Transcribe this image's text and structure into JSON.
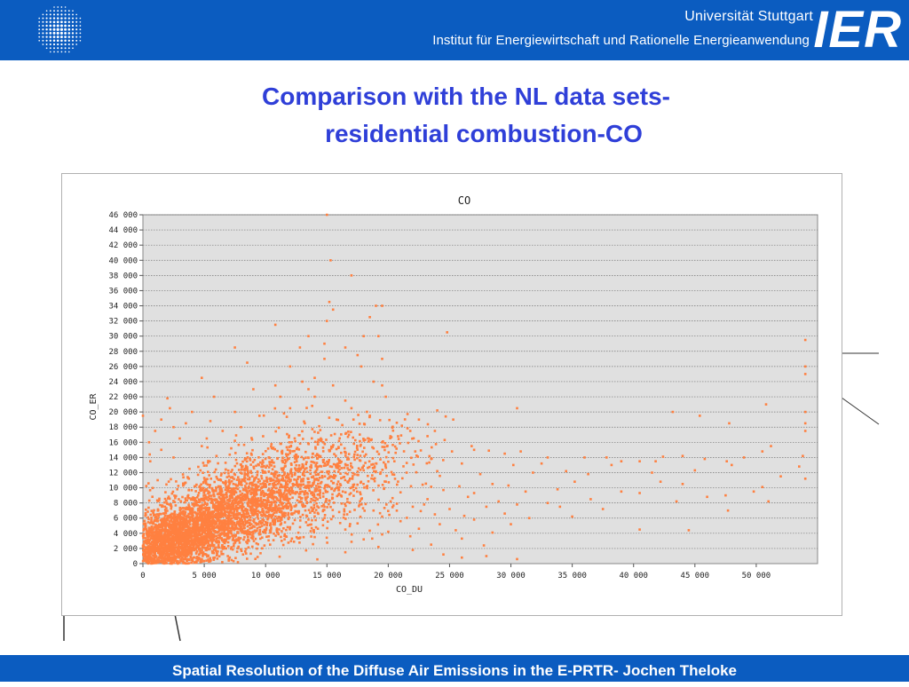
{
  "header": {
    "university": "Universität Stuttgart",
    "institute": "Institut für Energiewirtschaft und Rationelle Energieanwendung",
    "logo_text": "IER",
    "bg_color": "#0b5cc0"
  },
  "slide": {
    "title_line1": "Comparison with the NL data sets-",
    "title_line2": "residential combustion-CO"
  },
  "footer": {
    "text": "Spatial Resolution of the Diffuse Air Emissions in the E-PRTR- Jochen Theloke"
  },
  "chart_data": {
    "type": "scatter",
    "title": "CO",
    "xlabel": "CO_DU",
    "ylabel": "CO_ER",
    "xlim": [
      0,
      55000
    ],
    "ylim": [
      0,
      46000
    ],
    "x_ticks": [
      0,
      5000,
      10000,
      15000,
      20000,
      25000,
      30000,
      35000,
      40000,
      45000,
      50000
    ],
    "x_tick_labels": [
      "0",
      "5 000",
      "10 000",
      "15 000",
      "20 000",
      "25 000",
      "30 000",
      "35 000",
      "40 000",
      "45 000",
      "50 000"
    ],
    "y_ticks": [
      0,
      2000,
      4000,
      6000,
      8000,
      10000,
      12000,
      14000,
      16000,
      18000,
      20000,
      22000,
      24000,
      26000,
      28000,
      30000,
      32000,
      34000,
      36000,
      38000,
      40000,
      42000,
      44000,
      46000
    ],
    "y_tick_labels": [
      "0",
      "2 000",
      "4 000",
      "6 000",
      "8 000",
      "10 000",
      "12 000",
      "14 000",
      "16 000",
      "18 000",
      "20 000",
      "22 000",
      "24 000",
      "26 000",
      "28 000",
      "30 000",
      "32 000",
      "34 000",
      "36 000",
      "38 000",
      "40 000",
      "42 000",
      "44 000",
      "46 000"
    ],
    "grid": "horizontal",
    "point_color": "#ff8040",
    "plot_bg": "#e0e0e0",
    "series": [
      {
        "points": [
          [
            15000,
            46000
          ],
          [
            15300,
            40000
          ],
          [
            17000,
            38000
          ],
          [
            15200,
            34500
          ],
          [
            15500,
            33500
          ],
          [
            19000,
            34000
          ],
          [
            19500,
            34000
          ],
          [
            15000,
            32000
          ],
          [
            18500,
            32500
          ],
          [
            10800,
            31500
          ],
          [
            13500,
            30000
          ],
          [
            18000,
            30000
          ],
          [
            24800,
            30500
          ],
          [
            14800,
            29000
          ],
          [
            19200,
            30000
          ],
          [
            54000,
            29500
          ],
          [
            12800,
            28500
          ],
          [
            16500,
            28500
          ],
          [
            7500,
            28500
          ],
          [
            8500,
            26500
          ],
          [
            12000,
            26000
          ],
          [
            14800,
            27000
          ],
          [
            17500,
            27500
          ],
          [
            19500,
            27000
          ],
          [
            54000,
            26000
          ],
          [
            4800,
            24500
          ],
          [
            13000,
            24000
          ],
          [
            14000,
            24500
          ],
          [
            17800,
            26000
          ],
          [
            54000,
            25000
          ],
          [
            9000,
            23000
          ],
          [
            10800,
            23500
          ],
          [
            13500,
            23000
          ],
          [
            15500,
            23500
          ],
          [
            18800,
            24000
          ],
          [
            19500,
            23500
          ],
          [
            2000,
            21800
          ],
          [
            5800,
            22000
          ],
          [
            11200,
            22000
          ],
          [
            14000,
            22000
          ],
          [
            16500,
            21500
          ],
          [
            19800,
            22000
          ],
          [
            2200,
            20500
          ],
          [
            4000,
            20000
          ],
          [
            7500,
            20000
          ],
          [
            12000,
            20500
          ],
          [
            13800,
            20800
          ],
          [
            17000,
            20500
          ],
          [
            24000,
            20200
          ],
          [
            30500,
            20500
          ],
          [
            43200,
            20000
          ],
          [
            50800,
            21000
          ],
          [
            54000,
            20000
          ],
          [
            0,
            19500
          ],
          [
            1500,
            19000
          ],
          [
            3500,
            18500
          ],
          [
            5500,
            18800
          ],
          [
            9500,
            19500
          ],
          [
            11500,
            19800
          ],
          [
            15800,
            19000
          ],
          [
            18500,
            19500
          ],
          [
            22500,
            19000
          ],
          [
            25300,
            19000
          ],
          [
            45400,
            19500
          ],
          [
            54000,
            18500
          ],
          [
            1000,
            17500
          ],
          [
            2500,
            18000
          ],
          [
            6500,
            17500
          ],
          [
            8000,
            18000
          ],
          [
            13200,
            18500
          ],
          [
            16800,
            17000
          ],
          [
            21800,
            17500
          ],
          [
            23800,
            17500
          ],
          [
            47800,
            18500
          ],
          [
            54000,
            17500
          ],
          [
            500,
            16000
          ],
          [
            3000,
            16500
          ],
          [
            5200,
            16500
          ],
          [
            9800,
            16800
          ],
          [
            14500,
            16500
          ],
          [
            19500,
            16000
          ],
          [
            20800,
            16800
          ],
          [
            24600,
            16300
          ],
          [
            26800,
            15500
          ],
          [
            51200,
            15500
          ],
          [
            1500,
            15000
          ],
          [
            4800,
            15500
          ],
          [
            7200,
            15200
          ],
          [
            11800,
            15000
          ],
          [
            17200,
            15800
          ],
          [
            18800,
            15200
          ],
          [
            22200,
            14800
          ],
          [
            25200,
            14800
          ],
          [
            27000,
            15000
          ],
          [
            28200,
            14900
          ],
          [
            29500,
            14500
          ],
          [
            30800,
            14800
          ],
          [
            33000,
            14000
          ],
          [
            36000,
            14000
          ],
          [
            37800,
            14000
          ],
          [
            39000,
            13500
          ],
          [
            40500,
            13500
          ],
          [
            42400,
            14100
          ],
          [
            44000,
            14200
          ],
          [
            45800,
            13800
          ],
          [
            47600,
            13500
          ],
          [
            49000,
            14000
          ],
          [
            50500,
            14800
          ],
          [
            53800,
            14200
          ],
          [
            600,
            13500
          ],
          [
            2500,
            14000
          ],
          [
            6000,
            14200
          ],
          [
            12500,
            13800
          ],
          [
            16000,
            13500
          ],
          [
            20500,
            13500
          ],
          [
            23500,
            13800
          ],
          [
            26000,
            13200
          ],
          [
            30200,
            13000
          ],
          [
            32500,
            13200
          ],
          [
            38200,
            13000
          ],
          [
            41800,
            13500
          ],
          [
            48000,
            13000
          ],
          [
            53500,
            12800
          ],
          [
            3800,
            12500
          ],
          [
            8500,
            12700
          ],
          [
            10000,
            12000
          ],
          [
            14200,
            12400
          ],
          [
            18000,
            12300
          ],
          [
            21500,
            12000
          ],
          [
            24000,
            12200
          ],
          [
            27500,
            11800
          ],
          [
            31800,
            12000
          ],
          [
            34500,
            12200
          ],
          [
            36300,
            11800
          ],
          [
            41500,
            12000
          ],
          [
            45000,
            12300
          ],
          [
            52000,
            11500
          ],
          [
            54000,
            11200
          ],
          [
            1200,
            11000
          ],
          [
            5000,
            11300
          ],
          [
            7000,
            10800
          ],
          [
            11000,
            10500
          ],
          [
            15500,
            10600
          ],
          [
            19800,
            10800
          ],
          [
            22800,
            10400
          ],
          [
            25800,
            10200
          ],
          [
            28500,
            10500
          ],
          [
            29800,
            10300
          ],
          [
            35200,
            10800
          ],
          [
            42200,
            10800
          ],
          [
            44000,
            10500
          ],
          [
            50500,
            10100
          ],
          [
            2800,
            9800
          ],
          [
            6300,
            9600
          ],
          [
            9200,
            9900
          ],
          [
            13000,
            9500
          ],
          [
            16300,
            9500
          ],
          [
            21000,
            9400
          ],
          [
            24500,
            9700
          ],
          [
            27000,
            9300
          ],
          [
            31200,
            9500
          ],
          [
            33800,
            9800
          ],
          [
            39000,
            9500
          ],
          [
            40500,
            9300
          ],
          [
            47500,
            9000
          ],
          [
            49800,
            9500
          ],
          [
            4000,
            8500
          ],
          [
            8800,
            8300
          ],
          [
            12200,
            8700
          ],
          [
            17800,
            8500
          ],
          [
            20200,
            8200
          ],
          [
            23200,
            8500
          ],
          [
            26500,
            8800
          ],
          [
            29000,
            8200
          ],
          [
            33000,
            8000
          ],
          [
            36500,
            8500
          ],
          [
            43500,
            8200
          ],
          [
            46000,
            8800
          ],
          [
            51000,
            8200
          ],
          [
            1800,
            7500
          ],
          [
            7500,
            7200
          ],
          [
            10500,
            7800
          ],
          [
            14800,
            7500
          ],
          [
            18800,
            7000
          ],
          [
            22000,
            7500
          ],
          [
            25000,
            7200
          ],
          [
            28000,
            7500
          ],
          [
            30500,
            7800
          ],
          [
            34000,
            7500
          ],
          [
            37500,
            7200
          ],
          [
            47700,
            7000
          ],
          [
            5500,
            6500
          ],
          [
            11500,
            6300
          ],
          [
            16000,
            6800
          ],
          [
            19500,
            6200
          ],
          [
            23800,
            6500
          ],
          [
            26200,
            6300
          ],
          [
            29500,
            6600
          ],
          [
            31500,
            6000
          ],
          [
            35000,
            6200
          ],
          [
            9500,
            5500
          ],
          [
            13500,
            5800
          ],
          [
            17500,
            5300
          ],
          [
            21000,
            5600
          ],
          [
            24200,
            5200
          ],
          [
            27000,
            5800
          ],
          [
            30000,
            5200
          ],
          [
            12000,
            4800
          ],
          [
            16500,
            4500
          ],
          [
            20000,
            4200
          ],
          [
            22500,
            4600
          ],
          [
            25500,
            4400
          ],
          [
            28500,
            4100
          ],
          [
            40500,
            4500
          ],
          [
            44500,
            4400
          ],
          [
            14000,
            3500
          ],
          [
            18000,
            3200
          ],
          [
            21800,
            3600
          ],
          [
            26000,
            3300
          ],
          [
            19200,
            2200
          ],
          [
            23500,
            2500
          ],
          [
            27800,
            2400
          ],
          [
            24500,
            1200
          ],
          [
            28000,
            1000
          ],
          [
            16500,
            1500
          ],
          [
            22000,
            1800
          ],
          [
            26000,
            800
          ],
          [
            30500,
            600
          ]
        ],
        "clusters": [
          {
            "cx": 2800,
            "cy": 3200,
            "sx": 2200,
            "sy": 2000,
            "n": 1700
          },
          {
            "cx": 6500,
            "cy": 6500,
            "sx": 3000,
            "sy": 2800,
            "n": 1300
          },
          {
            "cx": 10500,
            "cy": 9500,
            "sx": 3200,
            "sy": 3000,
            "n": 900
          },
          {
            "cx": 15500,
            "cy": 11500,
            "sx": 3800,
            "sy": 3500,
            "n": 500
          }
        ]
      }
    ]
  }
}
